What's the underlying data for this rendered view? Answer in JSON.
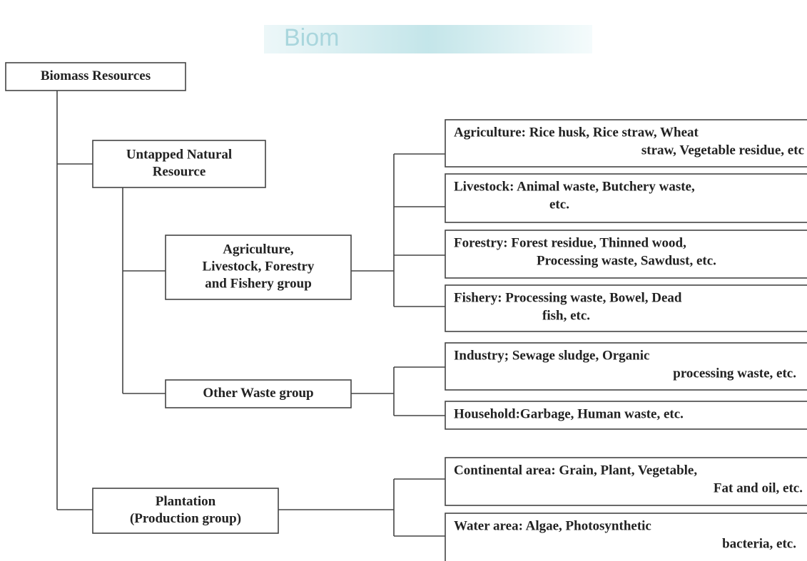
{
  "watermark": "Biom",
  "nodes": [
    {
      "lines": [
        "Biomass Resources"
      ]
    },
    {
      "lines": [
        "Untapped Natural",
        "Resource"
      ]
    },
    {
      "lines": [
        "Agriculture,",
        "Livestock, Forestry",
        "and Fishery group"
      ]
    },
    {
      "lines": [
        "Other Waste group"
      ]
    },
    {
      "lines": [
        "Plantation",
        "(Production group)"
      ]
    },
    {
      "lines": [
        "Agriculture:  Rice husk, Rice straw, Wheat",
        "straw, Vegetable residue, etc"
      ]
    },
    {
      "lines": [
        "Livestock: Animal waste, Butchery waste,",
        "etc."
      ]
    },
    {
      "lines": [
        "Forestry: Forest residue, Thinned wood,",
        "Processing waste, Sawdust, etc."
      ]
    },
    {
      "lines": [
        "Fishery:  Processing waste, Bowel, Dead",
        "fish, etc."
      ]
    },
    {
      "lines": [
        "Industry;  Sewage sludge, Organic",
        "processing waste, etc."
      ]
    },
    {
      "lines": [
        "Household:Garbage, Human waste, etc."
      ]
    },
    {
      "lines": [
        "Continental area: Grain, Plant, Vegetable,",
        "Fat and oil, etc."
      ]
    },
    {
      "lines": [
        "Water area: Algae, Photosynthetic",
        "bacteria, etc."
      ]
    }
  ]
}
